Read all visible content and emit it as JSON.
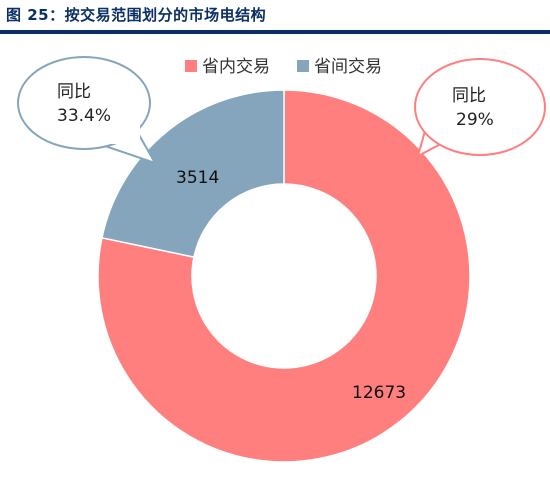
{
  "title": "图 25：按交易范围划分的市场电结构",
  "chart_data": {
    "type": "pie",
    "donut": true,
    "categories": [
      "省内交易",
      "省间交易"
    ],
    "values": [
      12673,
      3514
    ],
    "colors": [
      "#ff7f7f",
      "#85a5bc"
    ],
    "legend": {
      "placement": "top-right",
      "items": [
        {
          "label": "省内交易",
          "color": "#ff7f7f"
        },
        {
          "label": "省间交易",
          "color": "#85a5bc"
        }
      ]
    },
    "data_labels": [
      "12673",
      "3514"
    ],
    "annotations": [
      {
        "series": "省间交易",
        "line1": "同比",
        "line2": "33.4%",
        "border_color": "#85a5bc"
      },
      {
        "series": "省内交易",
        "line1": "同比",
        "line2": "29%",
        "border_color": "#ff7f7f"
      }
    ]
  }
}
